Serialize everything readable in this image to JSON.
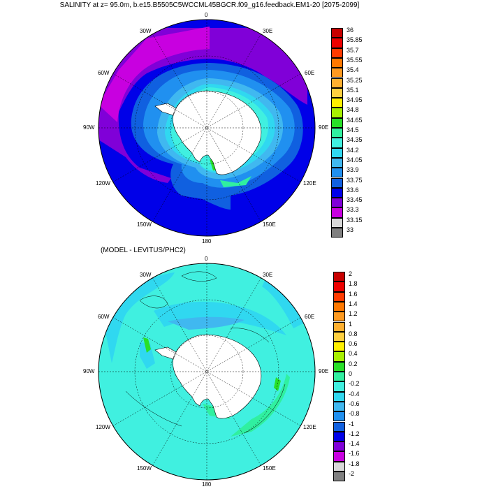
{
  "title": "SALINITY at z=  95.0m, b.e15.B5505C5WCCML45BGCR.f09_g16.feedback.EM1-20 [2075-2099]",
  "subtitle": "(MODEL - LEVITUS/PHC2)",
  "map_labels": {
    "top": "0",
    "upper_left": "30W",
    "upper_right": "30E",
    "mid_upper_left": "60W",
    "mid_upper_right": "60E",
    "left": "90W",
    "right": "90E",
    "mid_lower_left": "120W",
    "mid_lower_right": "120E",
    "lower_left": "150W",
    "lower_right": "150E",
    "bottom": "180"
  },
  "panel1": {
    "colorbar": {
      "labels": [
        "36",
        "35.85",
        "35.7",
        "35.55",
        "35.4",
        "35.25",
        "35.1",
        "34.95",
        "34.8",
        "34.65",
        "34.5",
        "34.35",
        "34.2",
        "34.05",
        "33.9",
        "33.75",
        "33.6",
        "33.45",
        "33.3",
        "33.15",
        "33"
      ],
      "colors": [
        "#c80000",
        "#ee0000",
        "#ff3a00",
        "#ff7800",
        "#ff9a20",
        "#ffb030",
        "#ffd040",
        "#fff000",
        "#a8f000",
        "#28e028",
        "#30f0a0",
        "#40f0e0",
        "#30d8f0",
        "#40b8f0",
        "#2090f0",
        "#1060e0",
        "#0000e8",
        "#8000d8",
        "#c800e0",
        "#d8d8d8",
        "#808080"
      ]
    }
  },
  "panel2": {
    "colorbar": {
      "labels": [
        "2",
        "1.8",
        "1.6",
        "1.4",
        "1.2",
        "1",
        "0.8",
        "0.6",
        "0.4",
        "0.2",
        "0",
        "-0.2",
        "-0.4",
        "-0.6",
        "-0.8",
        "-1",
        "-1.2",
        "-1.4",
        "-1.6",
        "-1.8",
        "-2"
      ],
      "colors": [
        "#c80000",
        "#ee0000",
        "#ff3a00",
        "#ff7800",
        "#ff9a20",
        "#ffb030",
        "#ffd040",
        "#fff000",
        "#a8f000",
        "#28e028",
        "#30f0a0",
        "#40f0e0",
        "#30d8f0",
        "#40b8f0",
        "#2090f0",
        "#1060e0",
        "#0000e8",
        "#8000d8",
        "#c800e0",
        "#d8d8d8",
        "#808080"
      ]
    }
  },
  "colors": {
    "land": "#ffffff",
    "ocean_mid_p1": "#2090f0",
    "ocean_deep_p1": "#0000e8",
    "ocean_p2": "#40f0e0"
  }
}
